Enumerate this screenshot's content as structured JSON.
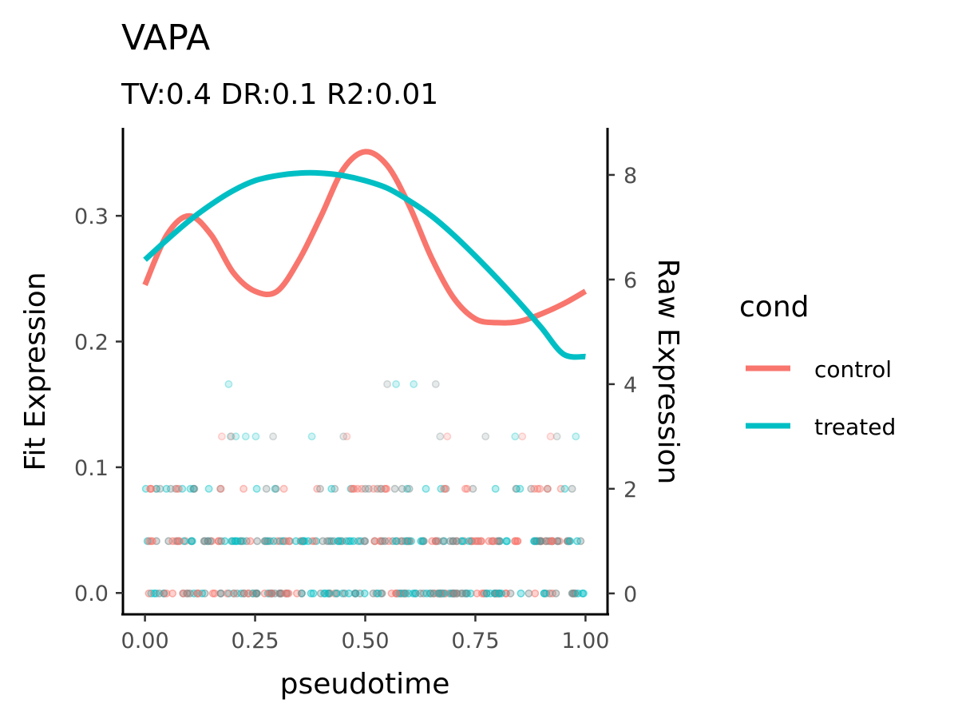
{
  "chart_data": {
    "type": "line",
    "title": "VAPA",
    "subtitle": "TV:0.4 DR:0.1 R2:0.01",
    "xlabel": "pseudotime",
    "ylabel": "Fit Expression",
    "y2label": "Raw Expression",
    "xlim": [
      -0.05,
      1.05
    ],
    "ylim": [
      -0.017,
      0.37
    ],
    "y2lim": [
      -0.4,
      8.9
    ],
    "xticks": [
      "0.00",
      "0.25",
      "0.50",
      "0.75",
      "1.00"
    ],
    "yticks": [
      "0.0",
      "0.1",
      "0.2",
      "0.3"
    ],
    "y2ticks": [
      "0",
      "2",
      "4",
      "6",
      "8"
    ],
    "grid": false,
    "legend": {
      "title": "cond",
      "position": "right"
    },
    "colors": {
      "control": "#F8766D",
      "treated": "#00BFC4",
      "overlap": "#7a8a8a"
    },
    "series": [
      {
        "name": "control",
        "axis": "left",
        "x": [
          0.0,
          0.05,
          0.1,
          0.15,
          0.2,
          0.25,
          0.3,
          0.35,
          0.4,
          0.45,
          0.5,
          0.55,
          0.6,
          0.65,
          0.7,
          0.75,
          0.8,
          0.85,
          0.9,
          0.95,
          1.0
        ],
        "values": [
          0.245,
          0.285,
          0.3,
          0.285,
          0.255,
          0.24,
          0.24,
          0.265,
          0.3,
          0.337,
          0.351,
          0.34,
          0.308,
          0.267,
          0.235,
          0.218,
          0.215,
          0.216,
          0.222,
          0.23,
          0.24
        ]
      },
      {
        "name": "treated",
        "axis": "left",
        "x": [
          0.0,
          0.05,
          0.1,
          0.15,
          0.2,
          0.25,
          0.3,
          0.35,
          0.4,
          0.45,
          0.5,
          0.55,
          0.6,
          0.65,
          0.7,
          0.75,
          0.8,
          0.85,
          0.9,
          0.95,
          1.0
        ],
        "values": [
          0.265,
          0.281,
          0.296,
          0.309,
          0.32,
          0.328,
          0.332,
          0.334,
          0.334,
          0.332,
          0.328,
          0.322,
          0.312,
          0.3,
          0.285,
          0.268,
          0.25,
          0.231,
          0.211,
          0.19,
          0.188
        ]
      }
    ],
    "raw_points": {
      "axis": "right",
      "rows": [
        {
          "y": 0,
          "density": "dense"
        },
        {
          "y": 1,
          "density": "dense"
        },
        {
          "y": 2,
          "density": "medium"
        },
        {
          "y": 3,
          "density": "sparse"
        },
        {
          "y": 4,
          "density": "sparse"
        }
      ]
    }
  }
}
